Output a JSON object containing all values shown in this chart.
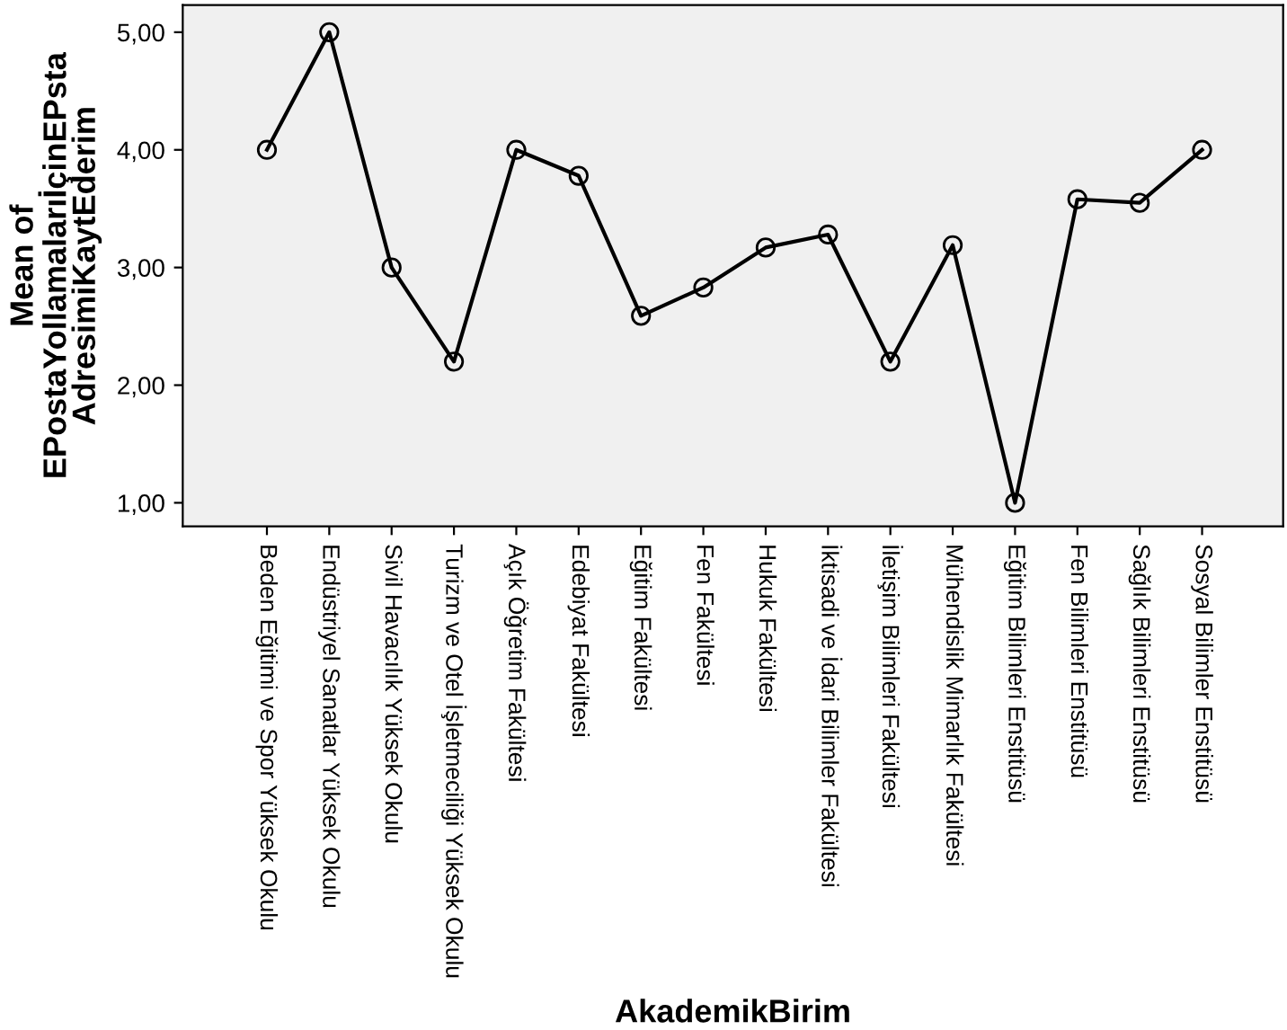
{
  "chart_data": {
    "type": "line",
    "xlabel": "AkademikBirim",
    "ylabel": "Mean of\nEPostaYollamalarıİçinEPsta\nAdresimiKaytEderim",
    "categories": [
      "Beden Eğitimi ve Spor Yüksek Okulu",
      "Endüstriyel Sanatlar Yüksek Okulu",
      "Sivil Havacılık Yüksek Okulu",
      "Turizm ve Otel İşletmeciliği Yüksek Okulu",
      "Açık Öğretim Fakültesi",
      "Edebiyat Fakültesi",
      "Eğitim Fakültesi",
      "Fen Fakültesi",
      "Hukuk Fakültesi",
      "İktisadi ve İdari Bilimler Fakültesi",
      "İletişim Bilimleri Fakültesi",
      "Mühendislik Mimarlık Fakültesi",
      "Eğitim Bilimleri Enstitüsü",
      "Fen Bilimleri Enstitüsü",
      "Sağlık Bilimleri Enstitüsü",
      "Sosyal Bilimler Enstitüsü"
    ],
    "series": [
      {
        "color": "#000000",
        "values": [
          4.0,
          5.0,
          3.0,
          2.2,
          4.0,
          3.78,
          2.59,
          2.83,
          3.17,
          3.28,
          2.2,
          3.19,
          1.0,
          3.58,
          3.55,
          4.0
        ]
      }
    ],
    "ylim": [
      0.8,
      5.23
    ],
    "yticks": [
      {
        "value": 1,
        "label": "1,00"
      },
      {
        "value": 2,
        "label": "2,00"
      },
      {
        "value": 3,
        "label": "3,00"
      },
      {
        "value": 4,
        "label": "4,00"
      },
      {
        "value": 5,
        "label": "5,00"
      }
    ],
    "grid": false,
    "legend": false,
    "marker": "circle",
    "line_style": "solid"
  }
}
